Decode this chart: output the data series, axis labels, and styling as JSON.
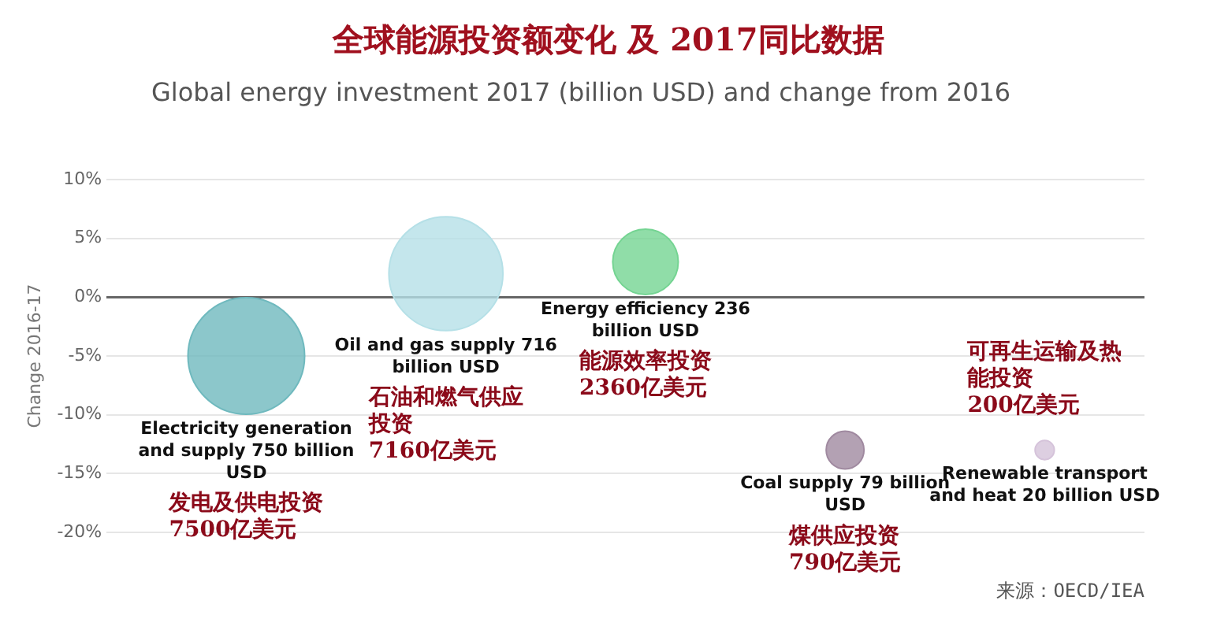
{
  "chart_data": {
    "type": "bubble",
    "title": "全球能源投资额变化 及 2017同比数据",
    "subtitle": "Global energy investment 2017 (billion USD) and change from 2016",
    "ylabel": "Change 2016-17",
    "categories": [
      null,
      null,
      null,
      null,
      null
    ],
    "series": [
      {
        "name": "Electricity generation and supply 750 billion USD",
        "color": "#6fb9be",
        "values": [
          -5,
          null,
          null,
          null,
          null
        ],
        "sizes": [
          1,
          null,
          null,
          null,
          null
        ]
      },
      {
        "name": "Oil and gas supply 716 billion USD",
        "color": "#b5e0e7",
        "values": [
          null,
          2,
          null,
          null,
          null
        ],
        "sizes": [
          null,
          0.955,
          null,
          null,
          null
        ]
      },
      {
        "name": "Energy efficiency 236 billion USD",
        "color": "#74d492",
        "values": [
          null,
          null,
          3,
          null,
          null
        ],
        "sizes": [
          null,
          null,
          0.315,
          null,
          null
        ]
      },
      {
        "name": "Coal supply 79 billion USD",
        "color": "#a08aa0",
        "values": [
          null,
          null,
          null,
          -13,
          null
        ],
        "sizes": [
          null,
          null,
          null,
          0.105,
          null
        ]
      },
      {
        "name": "Renewable transport and heat 20 billion USD",
        "color": "#d5c3da",
        "values": [
          null,
          null,
          null,
          null,
          -13
        ],
        "sizes": [
          null,
          null,
          null,
          null,
          0.027
        ]
      }
    ],
    "annotations": [
      "发电及供电投资7500亿美元",
      "石油和燃气供应投资7160亿美元",
      "能源效率投资2360亿美元",
      "煤供应投资790亿美元",
      "可再生运输及热能投资200亿美元",
      "来源：OECD/IEA"
    ],
    "ylim": [
      -20,
      10
    ],
    "yticks": [
      {
        "value": 10,
        "label": "10%"
      },
      {
        "value": 5,
        "label": "5%"
      },
      {
        "value": 0,
        "label": "0%"
      },
      {
        "value": -5,
        "label": "-5%"
      },
      {
        "value": -10,
        "label": "-10%"
      },
      {
        "value": -15,
        "label": "-15%"
      },
      {
        "value": -20,
        "label": "-20%"
      }
    ],
    "grid": "y",
    "legend": false
  }
}
